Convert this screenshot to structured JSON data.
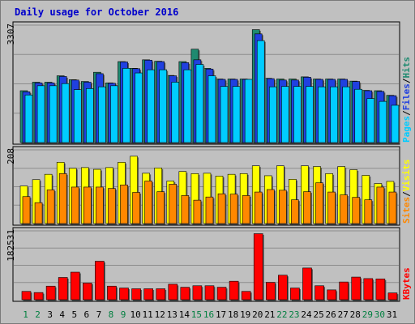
{
  "chart_data": {
    "type": "bar",
    "title": "Daily usage for October 2016",
    "categories": [
      "1",
      "2",
      "3",
      "4",
      "5",
      "6",
      "7",
      "8",
      "9",
      "10",
      "11",
      "12",
      "13",
      "14",
      "15",
      "16",
      "17",
      "18",
      "19",
      "20",
      "21",
      "22",
      "23",
      "24",
      "25",
      "26",
      "27",
      "28",
      "29",
      "30",
      "31"
    ],
    "weekend_days": [
      "1",
      "2",
      "8",
      "9",
      "15",
      "16",
      "22",
      "23",
      "29",
      "30"
    ],
    "panels": [
      {
        "id": "hits",
        "ylim": [
          0,
          3307
        ],
        "max_label": "3307",
        "legend": [
          "Pages",
          "Files",
          "Hits"
        ],
        "series": [
          {
            "name": "Hits",
            "color": "#1f8a70",
            "values": [
              1460,
              1700,
              1700,
              1880,
              1770,
              1720,
              1980,
              1680,
              2280,
              2090,
              2330,
              2290,
              1890,
              2280,
              2630,
              2090,
              1790,
              1790,
              1790,
              3180,
              1810,
              1790,
              1790,
              1850,
              1790,
              1790,
              1790,
              1730,
              1470,
              1460,
              1330
            ]
          },
          {
            "name": "Files",
            "color": "#2040e0",
            "values": [
              1430,
              1680,
              1680,
              1860,
              1760,
              1700,
              1940,
              1670,
              2270,
              2080,
              2320,
              2280,
              1880,
              2250,
              2330,
              2070,
              1780,
              1780,
              1780,
              3060,
              1800,
              1760,
              1760,
              1840,
              1780,
              1780,
              1780,
              1720,
              1460,
              1440,
              1320
            ]
          },
          {
            "name": "Pages",
            "color": "#00ccff",
            "values": [
              1340,
              1600,
              1600,
              1660,
              1490,
              1520,
              1570,
              1600,
              2090,
              1960,
              2050,
              2050,
              1700,
              2050,
              2200,
              1880,
              1580,
              1580,
              1780,
              2870,
              1570,
              1580,
              1580,
              1580,
              1570,
              1570,
              1570,
              1500,
              1240,
              1160,
              1050
            ]
          }
        ]
      },
      {
        "id": "visits",
        "ylim": [
          0,
          208
        ],
        "max_label": "208",
        "legend": [
          "Sites",
          "Visits"
        ],
        "series": [
          {
            "name": "Visits",
            "color": "#ffff00",
            "values": [
              106,
              124,
              139,
              173,
              156,
              158,
              153,
              158,
              173,
              190,
              142,
              157,
              120,
              147,
              141,
              142,
              134,
              139,
              141,
              163,
              135,
              163,
              125,
              163,
              161,
              141,
              161,
              152,
              136,
              113,
              119
            ]
          },
          {
            "name": "Sites",
            "color": "#ff8800",
            "values": [
              76,
              59,
              95,
              141,
              103,
              103,
              103,
              99,
              109,
              88,
              120,
              90,
              111,
              79,
              66,
              75,
              84,
              83,
              79,
              89,
              96,
              94,
              67,
              90,
              115,
              89,
              81,
              74,
              67,
              103,
              89
            ]
          }
        ]
      },
      {
        "id": "kbytes",
        "ylim": [
          0,
          182531
        ],
        "max_label": "182531",
        "legend": [
          "KBytes"
        ],
        "series": [
          {
            "name": "KBytes",
            "color": "#ff0000",
            "values": [
              22000,
              19000,
              36000,
              59000,
              73000,
              44000,
              102000,
              36000,
              31000,
              29000,
              29000,
              29000,
              41000,
              33000,
              37000,
              37000,
              33000,
              49000,
              22000,
              175000,
              46000,
              65000,
              31000,
              84000,
              37000,
              26000,
              47000,
              60000,
              56000,
              55000,
              18000
            ]
          }
        ]
      }
    ]
  },
  "colors": {
    "background": "#c0c0c0",
    "plot_background": "#c0c0c0",
    "gridline": "#8c8c8c",
    "title": "#0000cc",
    "weekday_label": "#000000",
    "weekend_label": "#007f3f",
    "legend_pages": "#00ccff",
    "legend_files": "#2040e0",
    "legend_hits": "#1f8a70",
    "legend_sites": "#ff8800",
    "legend_visits": "#ffff00",
    "legend_kbytes": "#ff0000",
    "legend_separator": "#000000"
  }
}
